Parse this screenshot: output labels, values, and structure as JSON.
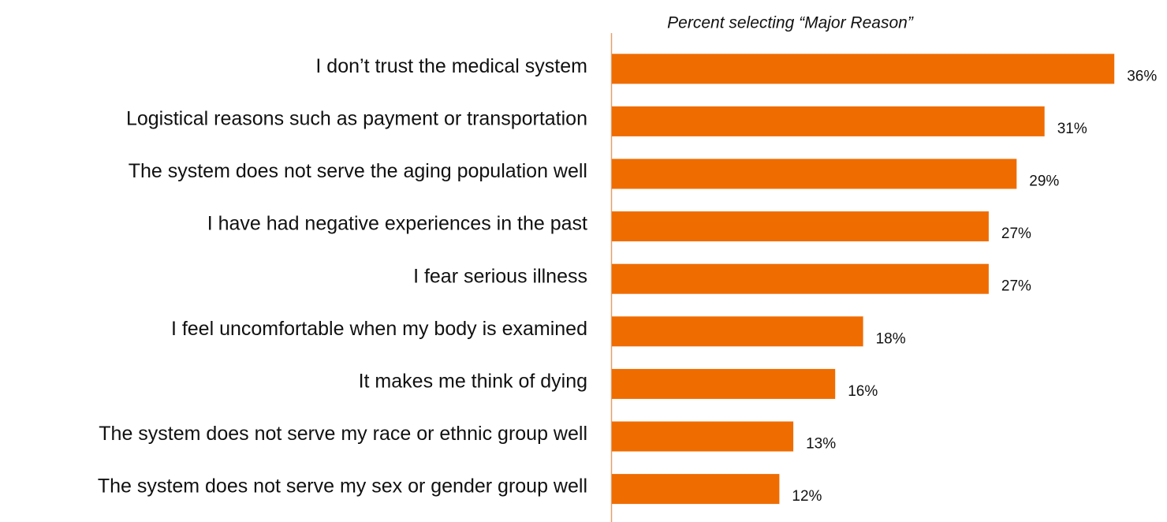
{
  "chart_data": {
    "type": "barh",
    "subtitle": "Percent selecting “Major Reason”",
    "categories": [
      "I don’t trust the medical system",
      "Logistical reasons such as payment or transportation",
      "The system does not serve the aging population well",
      "I have had negative experiences in the past",
      "I fear serious illness",
      "I feel uncomfortable when my body is examined",
      "It makes me think of dying",
      "The system does not serve my race or ethnic group well",
      "The system does not serve my sex or gender group well"
    ],
    "values": [
      36,
      31,
      29,
      27,
      27,
      18,
      16,
      13,
      12
    ],
    "value_labels": [
      "36%",
      "31%",
      "29%",
      "27%",
      "27%",
      "18%",
      "16%",
      "13%",
      "12%"
    ],
    "color": "#ef6c00"
  }
}
